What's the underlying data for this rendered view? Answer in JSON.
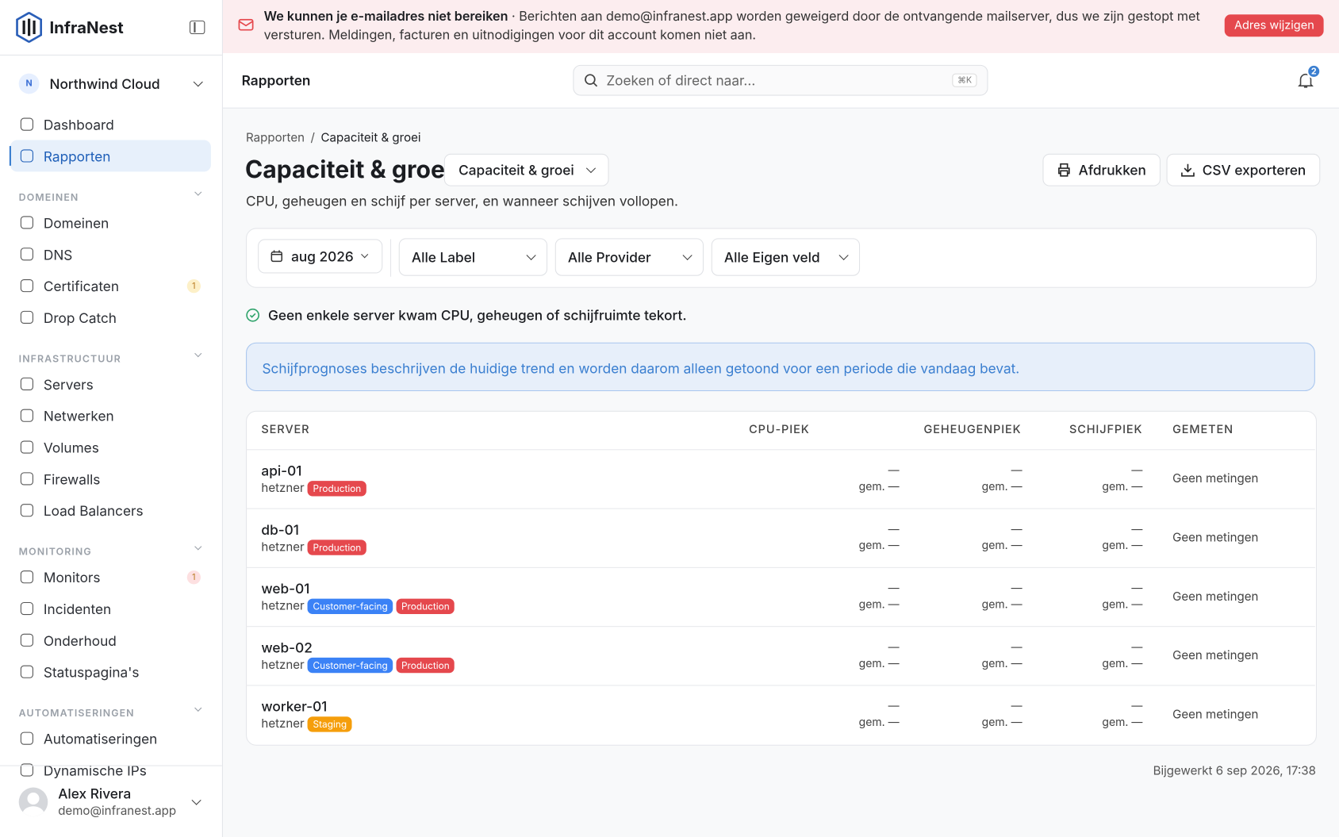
{
  "sidebar": {
    "brand": "InfraNest",
    "workspace": "Northwind Cloud",
    "top": [
      {
        "label": "Dashboard"
      },
      {
        "label": "Rapporten",
        "active": true
      }
    ],
    "sections": [
      {
        "title": "DOMEINEN",
        "items": [
          {
            "label": "Domeinen"
          },
          {
            "label": "DNS"
          },
          {
            "label": "Certificaten",
            "count": "1",
            "count_color": "#fdf0c8"
          },
          {
            "label": "Drop Catch"
          }
        ]
      },
      {
        "title": "INFRASTRUCTUUR",
        "items": [
          {
            "label": "Servers"
          },
          {
            "label": "Netwerken"
          },
          {
            "label": "Volumes"
          },
          {
            "label": "Firewalls"
          },
          {
            "label": "Load Balancers"
          }
        ]
      },
      {
        "title": "MONITORING",
        "items": [
          {
            "label": "Monitors",
            "count": "1",
            "count_color": "#fde0e1"
          },
          {
            "label": "Incidenten"
          },
          {
            "label": "Onderhoud"
          },
          {
            "label": "Statuspagina's"
          }
        ]
      },
      {
        "title": "AUTOMATISERINGEN",
        "items": [
          {
            "label": "Automatiseringen"
          },
          {
            "label": "Dynamische IPs"
          }
        ]
      }
    ],
    "user": {
      "name": "Alex Rivera",
      "email": "demo@infranest.app"
    }
  },
  "banner": {
    "title": "We kunnen je e-mailadres niet bereiken",
    "message": " · Berichten aan demo@infranest.app worden geweigerd door de ontvangende mailserver, dus we zijn gestopt met versturen. Meldingen, facturen en uitnodigingen voor dit account komen niet aan.",
    "button": "Adres wijzigen"
  },
  "header": {
    "title": "Rapporten",
    "search": "Zoeken of direct naar...",
    "shortcut": "⌘K",
    "notifications": "2"
  },
  "page": {
    "breadcrumb": [
      "Rapporten",
      "Capaciteit & groei"
    ],
    "title": "Capaciteit & groei",
    "report_select": "Capaciteit & groei",
    "actions": [
      "Afdrukken",
      "CSV exporteren"
    ],
    "description": "CPU, geheugen en schijf per server, en wanneer schijven vollopen.",
    "filters": {
      "period": "aug 2026",
      "selects": [
        "Alle Label",
        "Alle Provider",
        "Alle Eigen veld"
      ]
    },
    "status": "Geen enkele server kwam CPU, geheugen of schijfruimte tekort.",
    "info": "Schijfprognoses beschrijven de huidige trend en worden daarom alleen getoond voor een periode die vandaag bevat.",
    "updated": "Bijgewerkt 6 sep 2026, 17:38"
  },
  "table": {
    "columns": [
      "SERVER",
      "CPU-PIEK",
      "GEHEUGENPIEK",
      "SCHIJFPIEK",
      "GEMETEN"
    ],
    "rows": [
      {
        "name": "api-01",
        "provider": "hetzner",
        "tags": [
          {
            "name": "Production",
            "color": "#e5484d"
          }
        ],
        "cpu": [
          "—",
          "gem. —"
        ],
        "mem": [
          "—",
          "gem. —"
        ],
        "disk": [
          "—",
          "gem. —"
        ],
        "measured": "Geen metingen"
      },
      {
        "name": "db-01",
        "provider": "hetzner",
        "tags": [
          {
            "name": "Production",
            "color": "#e5484d"
          }
        ],
        "cpu": [
          "—",
          "gem. —"
        ],
        "mem": [
          "—",
          "gem. —"
        ],
        "disk": [
          "—",
          "gem. —"
        ],
        "measured": "Geen metingen"
      },
      {
        "name": "web-01",
        "provider": "hetzner",
        "tags": [
          {
            "name": "Customer-facing",
            "color": "#3b82f6"
          },
          {
            "name": "Production",
            "color": "#e5484d"
          }
        ],
        "cpu": [
          "—",
          "gem. —"
        ],
        "mem": [
          "—",
          "gem. —"
        ],
        "disk": [
          "—",
          "gem. —"
        ],
        "measured": "Geen metingen"
      },
      {
        "name": "web-02",
        "provider": "hetzner",
        "tags": [
          {
            "name": "Customer-facing",
            "color": "#3b82f6"
          },
          {
            "name": "Production",
            "color": "#e5484d"
          }
        ],
        "cpu": [
          "—",
          "gem. —"
        ],
        "mem": [
          "—",
          "gem. —"
        ],
        "disk": [
          "—",
          "gem. —"
        ],
        "measured": "Geen metingen"
      },
      {
        "name": "worker-01",
        "provider": "hetzner",
        "tags": [
          {
            "name": "Staging",
            "color": "#f59e0b"
          }
        ],
        "cpu": [
          "—",
          "gem. —"
        ],
        "mem": [
          "—",
          "gem. —"
        ],
        "disk": [
          "—",
          "gem. —"
        ],
        "measured": "Geen metingen"
      }
    ]
  }
}
